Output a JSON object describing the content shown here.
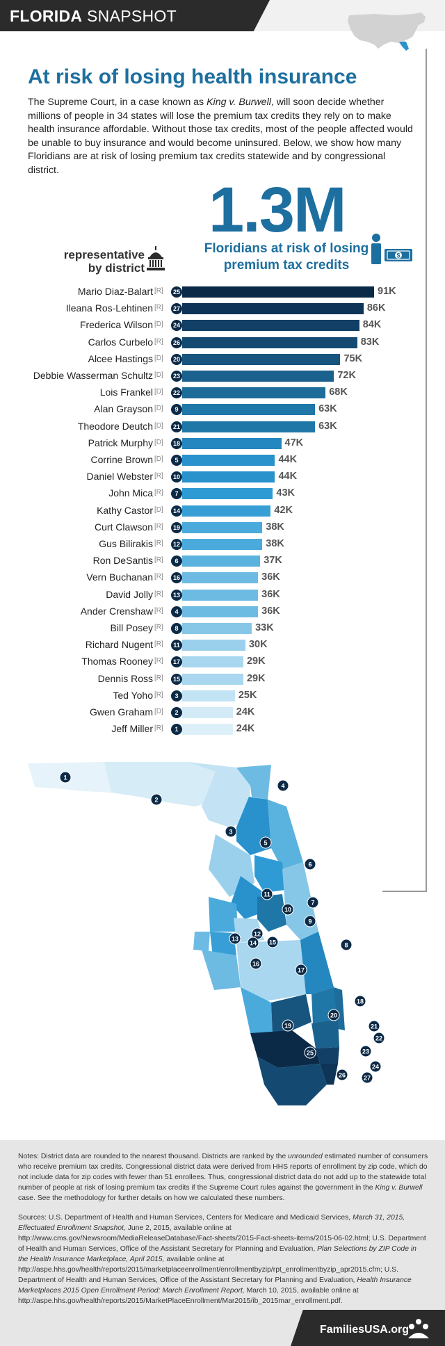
{
  "header": {
    "brand_bold": "FLORIDA",
    "brand_light": "SNAPSHOT"
  },
  "headline": "At risk of losing health insurance",
  "intro": {
    "part1": "The Supreme Court, in a case known as ",
    "case_name": "King v. Burwell",
    "part2": ", will soon decide whether millions of people in 34 states will lose the premium tax credits they rely on to make health insurance affordable. Without those tax credits, most of the people affected would be unable to buy insurance and would become uninsured. Below, we show how many Floridians are at risk of losing premium tax credits statewide and by congressional district."
  },
  "highlight": {
    "value": "1.3M",
    "caption_line1": "Floridians at risk of losing",
    "caption_line2": "premium tax credits"
  },
  "rep_label": {
    "line1": "representative",
    "line2": "by district"
  },
  "chart_data": {
    "type": "bar",
    "orientation": "horizontal",
    "title": "",
    "xlabel": "",
    "ylabel": "",
    "xlim": [
      0,
      91
    ],
    "value_unit": "thousands",
    "categories": [
      "Mario Diaz-Balart",
      "Ileana Ros-Lehtinen",
      "Frederica Wilson",
      "Carlos Curbelo",
      "Alcee Hastings",
      "Debbie Wasserman Schultz",
      "Lois Frankel",
      "Alan Grayson",
      "Theodore Deutch",
      "Patrick Murphy",
      "Corrine Brown",
      "Daniel Webster",
      "John Mica",
      "Kathy Castor",
      "Curt Clawson",
      "Gus Bilirakis",
      "Ron DeSantis",
      "Vern Buchanan",
      "David Jolly",
      "Ander Crenshaw",
      "Bill Posey",
      "Richard Nugent",
      "Thomas Rooney",
      "Dennis Ross",
      "Ted Yoho",
      "Gwen Graham",
      "Jeff Miller"
    ],
    "party": [
      "[R]",
      "[R]",
      "[D]",
      "[R]",
      "[D]",
      "[D]",
      "[D]",
      "[D]",
      "[D]",
      "[D]",
      "[D]",
      "[R]",
      "[R]",
      "[D]",
      "[R]",
      "[R]",
      "[R]",
      "[R]",
      "[R]",
      "[R]",
      "[R]",
      "[R]",
      "[R]",
      "[R]",
      "[R]",
      "[D]",
      "[R]"
    ],
    "district": [
      "25",
      "27",
      "24",
      "26",
      "20",
      "23",
      "22",
      "9",
      "21",
      "18",
      "5",
      "10",
      "7",
      "14",
      "19",
      "12",
      "6",
      "16",
      "13",
      "4",
      "8",
      "11",
      "17",
      "15",
      "3",
      "2",
      "1"
    ],
    "values": [
      91,
      86,
      84,
      83,
      75,
      72,
      68,
      63,
      63,
      47,
      44,
      44,
      43,
      42,
      38,
      38,
      37,
      36,
      36,
      36,
      33,
      30,
      29,
      29,
      25,
      24,
      24
    ],
    "labels": [
      "91K",
      "86K",
      "84K",
      "83K",
      "75K",
      "72K",
      "68K",
      "63K",
      "63K",
      "47K",
      "44K",
      "44K",
      "43K",
      "42K",
      "38K",
      "38K",
      "37K",
      "36K",
      "36K",
      "36K",
      "33K",
      "30K",
      "29K",
      "29K",
      "25K",
      "24K",
      "24K"
    ],
    "colors": [
      "#0b2a47",
      "#0e3457",
      "#113f66",
      "#144a72",
      "#17557f",
      "#1a618d",
      "#1d6c9a",
      "#1f77a8",
      "#1f77a8",
      "#2487c0",
      "#2992cd",
      "#2992cd",
      "#2f9bd4",
      "#389fd6",
      "#4baadc",
      "#4baadc",
      "#5ab2df",
      "#6dbbe3",
      "#6dbbe3",
      "#6dbbe3",
      "#86c7e8",
      "#9ad0ec",
      "#a8d7ef",
      "#a8d7ef",
      "#c1e3f4",
      "#d2ebf7",
      "#ddf0f9"
    ]
  },
  "map": {
    "title": "Florida congressional districts",
    "district_labels": [
      "1",
      "2",
      "3",
      "4",
      "5",
      "6",
      "7",
      "8",
      "9",
      "10",
      "11",
      "12",
      "13",
      "14",
      "15",
      "16",
      "17",
      "18",
      "19",
      "20",
      "21",
      "22",
      "23",
      "24",
      "25",
      "26",
      "27"
    ]
  },
  "notes": {
    "part1": "Notes: District data are rounded to the nearest thousand. Districts are ranked by the ",
    "em": "unrounded",
    "part2": " estimated number of consumers who receive premium tax credits. Congressional district data were derived from HHS reports of enrollment by zip code, which do not include data for zip codes with fewer than 51 enrollees. Thus, congressional district data do not add up to the statewide total number of people at risk of losing premium tax credits if the Supreme Court rules against the government in the ",
    "case_name": "King v. Burwell",
    "part3": " case. See the methodology for further details on how we calculated these numbers."
  },
  "sources": {
    "s1": "Sources: U.S. Department of Health and Human Services, Centers for Medicare and Medicaid Services, ",
    "s1_em": "March 31, 2015, Effectuated Enrollment Snapshot,",
    "s2": " June 2, 2015, available online at http://www.cms.gov/Newsroom/MediaReleaseDatabase/Fact-sheets/2015-Fact-sheets-items/2015-06-02.html; U.S. Department of Health and Human Services, Office of the Assistant Secretary for Planning and Evaluation, ",
    "s2_em": "Plan Selections by ZIP Code in the Health Insurance Marketplace, April 2015,",
    "s3": " available online at http://aspe.hhs.gov/health/reports/2015/marketplaceenrollment/enrollmentbyzip/rpt_enrollmentbyzip_apr2015.cfm; U.S. Department of Health and Human Services, Office of the Assistant Secretary for Planning and Evaluation, ",
    "s3_em": "Health Insurance Marketplaces 2015 Open Enrollment Period: March Enrollment Report,",
    "s4": " March 10, 2015, available online at http://aspe.hhs.gov/health/reports/2015/MarketPlaceEnrollment/Mar2015/ib_2015mar_enrollment.pdf."
  },
  "footer": {
    "brand": "FamiliesUSA.org"
  },
  "icons": {
    "capitol": "capitol-icon",
    "person": "person-icon",
    "money": "dollar-bill-icon",
    "logo": "families-usa-logo-icon"
  }
}
